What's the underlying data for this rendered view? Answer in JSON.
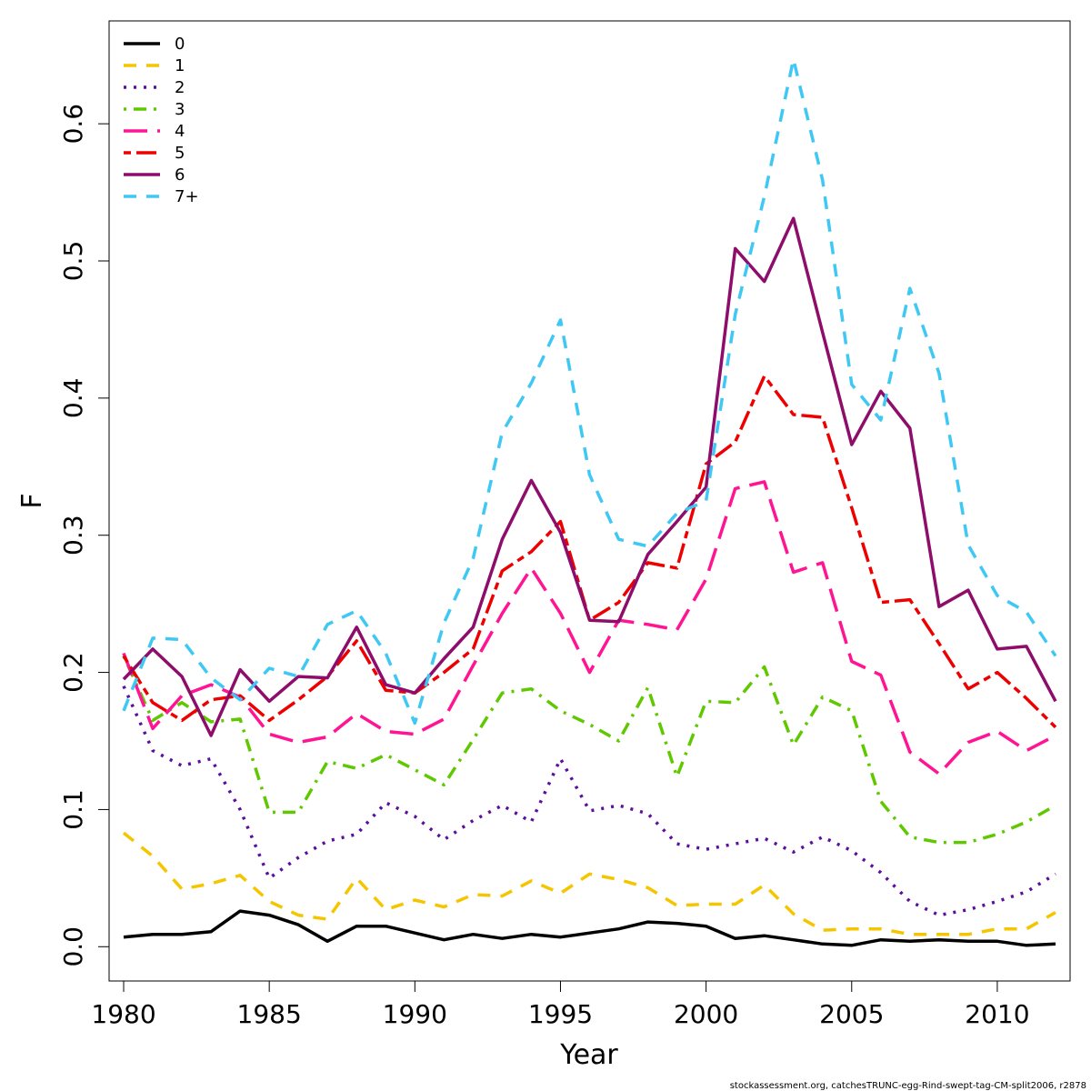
{
  "chart_data": {
    "type": "line",
    "xlabel": "Year",
    "ylabel": "F",
    "xlim": [
      1979.5,
      2012.5
    ],
    "ylim": [
      -0.025,
      0.675
    ],
    "xticks": [
      1980,
      1985,
      1990,
      1995,
      2000,
      2005,
      2010
    ],
    "yticks": [
      0.0,
      0.1,
      0.2,
      0.3,
      0.4,
      0.5,
      0.6
    ],
    "ytick_labels": [
      "0.0",
      "0.1",
      "0.2",
      "0.3",
      "0.4",
      "0.5",
      "0.6"
    ],
    "grid": false,
    "legend_position": "top-left",
    "footer": "stockassessment.org, catchesTRUNC-egg-Rind-swept-tag-CM-split2006, r2878",
    "x": [
      1980,
      1981,
      1982,
      1983,
      1984,
      1985,
      1986,
      1987,
      1988,
      1989,
      1990,
      1991,
      1992,
      1993,
      1994,
      1995,
      1996,
      1997,
      1998,
      1999,
      2000,
      2001,
      2002,
      2003,
      2004,
      2005,
      2006,
      2007,
      2008,
      2009,
      2010,
      2011,
      2012
    ],
    "series": [
      {
        "name": "0",
        "color": "#000000",
        "dash": "solid",
        "values": [
          0.007,
          0.009,
          0.009,
          0.011,
          0.026,
          0.023,
          0.016,
          0.004,
          0.015,
          0.015,
          0.01,
          0.005,
          0.009,
          0.006,
          0.009,
          0.007,
          0.01,
          0.013,
          0.018,
          0.017,
          0.015,
          0.006,
          0.008,
          0.005,
          0.002,
          0.001,
          0.005,
          0.004,
          0.005,
          0.004,
          0.004,
          0.001,
          0.002
        ]
      },
      {
        "name": "1",
        "color": "#F5C500",
        "dash": "dashed",
        "values": [
          0.083,
          0.066,
          0.042,
          0.046,
          0.052,
          0.033,
          0.023,
          0.02,
          0.05,
          0.027,
          0.034,
          0.029,
          0.038,
          0.037,
          0.048,
          0.039,
          0.053,
          0.049,
          0.043,
          0.03,
          0.031,
          0.031,
          0.045,
          0.024,
          0.012,
          0.013,
          0.013,
          0.009,
          0.009,
          0.009,
          0.013,
          0.013,
          0.025
        ]
      },
      {
        "name": "2",
        "color": "#5B0F9E",
        "dash": "dotted",
        "values": [
          0.19,
          0.143,
          0.132,
          0.137,
          0.1,
          0.05,
          0.065,
          0.077,
          0.082,
          0.105,
          0.095,
          0.078,
          0.092,
          0.103,
          0.091,
          0.137,
          0.099,
          0.103,
          0.097,
          0.075,
          0.071,
          0.075,
          0.079,
          0.069,
          0.08,
          0.07,
          0.054,
          0.033,
          0.023,
          0.027,
          0.033,
          0.04,
          0.053
        ]
      },
      {
        "name": "3",
        "color": "#5FC800",
        "dash": "dotdash",
        "values": [
          0.212,
          0.165,
          0.178,
          0.164,
          0.166,
          0.098,
          0.098,
          0.135,
          0.13,
          0.14,
          0.129,
          0.118,
          0.151,
          0.185,
          0.188,
          0.172,
          0.162,
          0.15,
          0.189,
          0.124,
          0.179,
          0.178,
          0.204,
          0.147,
          0.182,
          0.172,
          0.106,
          0.08,
          0.076,
          0.076,
          0.082,
          0.091,
          0.103
        ]
      },
      {
        "name": "4",
        "color": "#FF1493",
        "dash": "longdash",
        "values": [
          0.214,
          0.159,
          0.183,
          0.191,
          0.182,
          0.155,
          0.149,
          0.153,
          0.17,
          0.157,
          0.155,
          0.166,
          0.205,
          0.243,
          0.276,
          0.243,
          0.2,
          0.238,
          0.235,
          0.231,
          0.268,
          0.334,
          0.339,
          0.273,
          0.28,
          0.208,
          0.198,
          0.142,
          0.126,
          0.149,
          0.157,
          0.143,
          0.154
        ]
      },
      {
        "name": "5",
        "color": "#EE0000",
        "dash": "twodash",
        "values": [
          0.212,
          0.178,
          0.165,
          0.18,
          0.183,
          0.165,
          0.18,
          0.197,
          0.223,
          0.187,
          0.185,
          0.2,
          0.217,
          0.274,
          0.288,
          0.31,
          0.238,
          0.251,
          0.28,
          0.276,
          0.352,
          0.368,
          0.416,
          0.388,
          0.386,
          0.32,
          0.251,
          0.253,
          0.221,
          0.188,
          0.2,
          0.181,
          0.16
        ]
      },
      {
        "name": "6",
        "color": "#8E0D6B",
        "dash": "solid",
        "values": [
          0.195,
          0.217,
          0.197,
          0.154,
          0.202,
          0.179,
          0.197,
          0.196,
          0.233,
          0.191,
          0.185,
          0.21,
          0.233,
          0.297,
          0.34,
          0.302,
          0.238,
          0.237,
          0.286,
          0.31,
          0.335,
          0.509,
          0.485,
          0.531,
          0.448,
          0.366,
          0.405,
          0.378,
          0.248,
          0.26,
          0.217,
          0.219,
          0.179
        ]
      },
      {
        "name": "7+",
        "color": "#3FC8F4",
        "dash": "dashed",
        "values": [
          0.172,
          0.225,
          0.224,
          0.196,
          0.18,
          0.203,
          0.197,
          0.235,
          0.245,
          0.214,
          0.163,
          0.236,
          0.283,
          0.375,
          0.411,
          0.457,
          0.344,
          0.297,
          0.292,
          0.316,
          0.325,
          0.461,
          0.547,
          0.647,
          0.559,
          0.41,
          0.384,
          0.48,
          0.418,
          0.293,
          0.256,
          0.244,
          0.212
        ]
      }
    ]
  }
}
